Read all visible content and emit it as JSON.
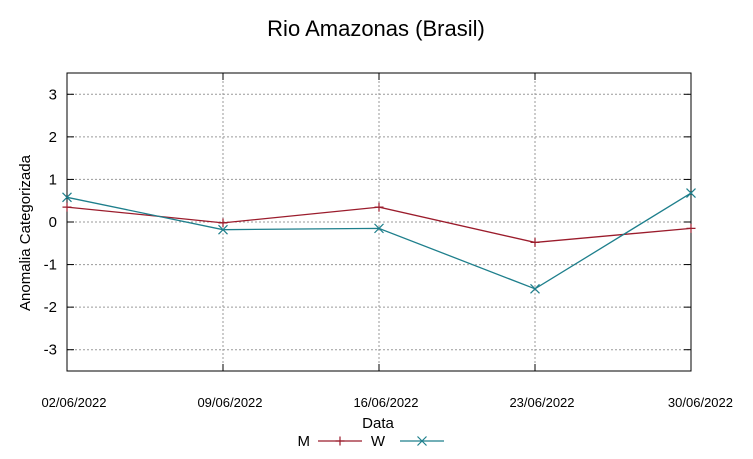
{
  "chart_data": {
    "type": "line",
    "title": "Rio Amazonas (Brasil)",
    "xlabel": "Data",
    "ylabel": "Anomalia Categorizada",
    "categories": [
      "02/06/2022",
      "09/06/2022",
      "16/06/2022",
      "23/06/2022",
      "30/06/2022"
    ],
    "ylim": [
      -3.5,
      3.5
    ],
    "yticks": [
      3,
      2,
      1,
      0,
      -1,
      -2,
      -3
    ],
    "ytick_labels": [
      "3",
      "2",
      "1",
      "0",
      "-1",
      "-2",
      "-3"
    ],
    "grid": true,
    "legend_position": "bottom",
    "series": [
      {
        "name": "M",
        "marker": "plus",
        "color": "#9b1c2c",
        "values": [
          0.35,
          -0.02,
          0.35,
          -0.48,
          -0.15
        ]
      },
      {
        "name": "W",
        "marker": "cross",
        "color": "#1e7f8c",
        "values": [
          0.58,
          -0.18,
          -0.15,
          -1.57,
          0.68
        ]
      }
    ]
  }
}
